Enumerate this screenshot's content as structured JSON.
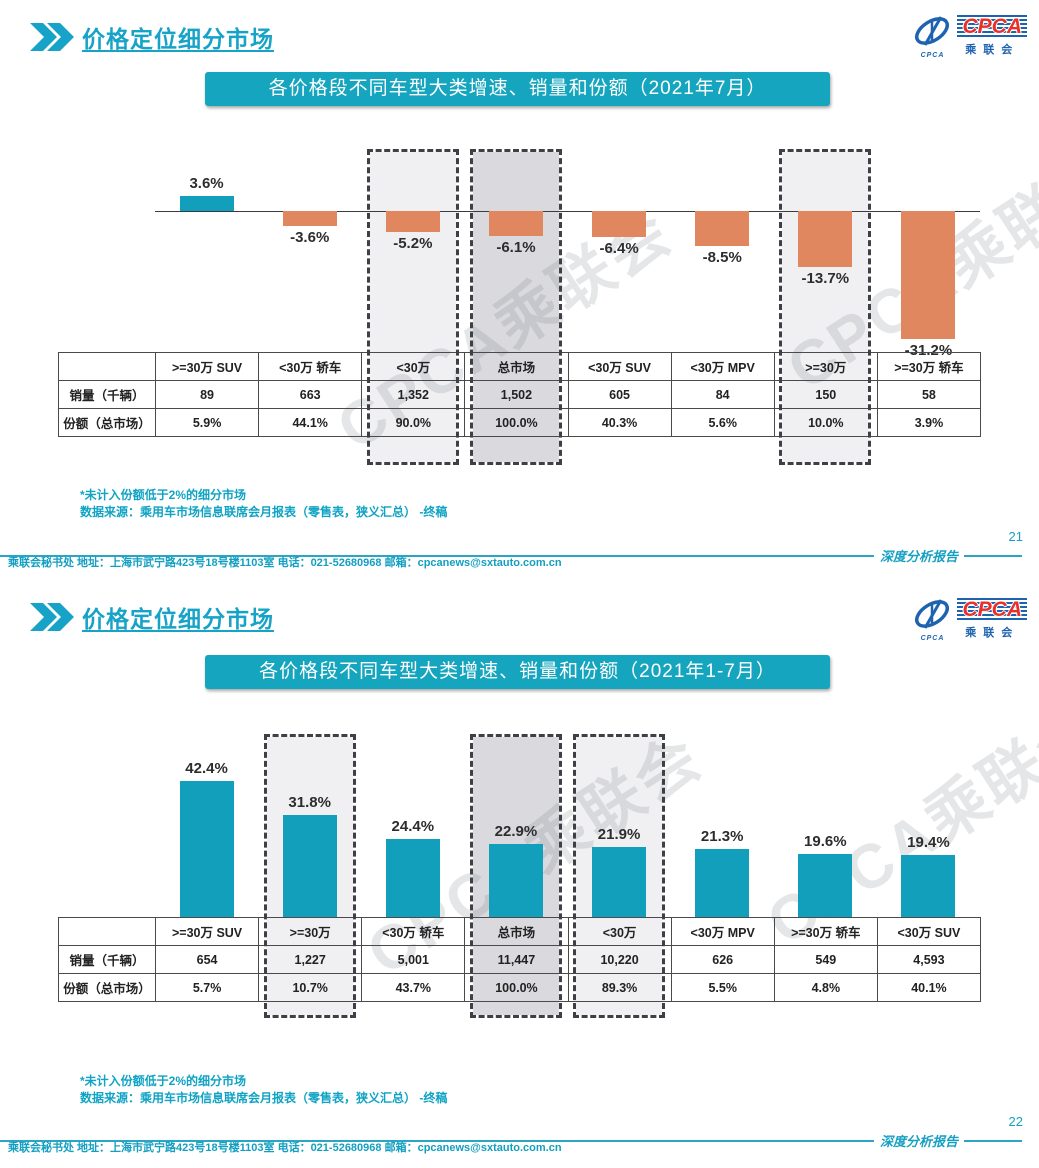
{
  "theme": {
    "accent_teal": "#15A5BE",
    "bar_positive": "#129FBC",
    "bar_negative": "#E0875F",
    "highlight_light": "#F0F0F2",
    "highlight_dark": "#D9D9DE"
  },
  "brand": {
    "logo_cpca": "CPCA",
    "logo_cn": "乘联会",
    "logo_sub": "CPCA"
  },
  "slides": [
    {
      "title": "价格定位细分市场",
      "banner": "各价格段不同车型大类增速、销量和份额（2021年7月）",
      "watermark": "CPCA乘联会",
      "chart_data": {
        "type": "bar",
        "title": "各价格段不同车型大类增速、销量和份额（2021年7月）",
        "categories": [
          ">=30万 SUV",
          "<30万 轿车",
          "<30万",
          "总市场",
          "<30万 SUV",
          "<30万 MPV",
          ">=30万",
          ">=30万 轿车"
        ],
        "values": [
          3.6,
          -3.6,
          -5.2,
          -6.1,
          -6.4,
          -8.5,
          -13.7,
          -31.2
        ],
        "value_labels": [
          "3.6%",
          "-3.6%",
          "-5.2%",
          "-6.1%",
          "-6.4%",
          "-8.5%",
          "-13.7%",
          "-31.2%"
        ],
        "xlabel": "",
        "ylabel": "",
        "grid": false,
        "legend": "none",
        "highlights": [
          {
            "index": 2,
            "tone": "light"
          },
          {
            "index": 3,
            "tone": "dark"
          },
          {
            "index": 6,
            "tone": "light"
          }
        ]
      },
      "table": {
        "row_labels": [
          "销量（千辆）",
          "份额（总市场）"
        ],
        "columns": [
          ">=30万 SUV",
          "<30万 轿车",
          "<30万",
          "总市场",
          "<30万 SUV",
          "<30万 MPV",
          ">=30万",
          ">=30万 轿车"
        ],
        "rows": [
          [
            "89",
            "663",
            "1,352",
            "1,502",
            "605",
            "84",
            "150",
            "58"
          ],
          [
            "5.9%",
            "44.1%",
            "90.0%",
            "100.0%",
            "40.3%",
            "5.6%",
            "10.0%",
            "3.9%"
          ]
        ]
      },
      "notes": [
        "*未计入份额低于2%的细分市场",
        "数据来源：乘用车市场信息联席会月报表（零售表，狭义汇总）  -终稿"
      ],
      "footer_contact": "乘联会秘书处   地址：上海市武宁路423号18号楼1103室   电话：021-52680968   邮箱：cpcanews@sxtauto.com.cn",
      "report_label": "深度分析报告",
      "page_number": "21"
    },
    {
      "title": "价格定位细分市场",
      "banner": "各价格段不同车型大类增速、销量和份额（2021年1-7月）",
      "watermark": "CPCA乘联会",
      "chart_data": {
        "type": "bar",
        "title": "各价格段不同车型大类增速、销量和份额（2021年1-7月）",
        "categories": [
          ">=30万 SUV",
          ">=30万",
          "<30万 轿车",
          "总市场",
          "<30万",
          "<30万 MPV",
          ">=30万 轿车",
          "<30万 SUV"
        ],
        "values": [
          42.4,
          31.8,
          24.4,
          22.9,
          21.9,
          21.3,
          19.6,
          19.4
        ],
        "value_labels": [
          "42.4%",
          "31.8%",
          "24.4%",
          "22.9%",
          "21.9%",
          "21.3%",
          "19.6%",
          "19.4%"
        ],
        "xlabel": "",
        "ylabel": "",
        "grid": false,
        "legend": "none",
        "highlights": [
          {
            "index": 1,
            "tone": "light"
          },
          {
            "index": 3,
            "tone": "dark"
          },
          {
            "index": 4,
            "tone": "light"
          }
        ]
      },
      "table": {
        "row_labels": [
          "销量（千辆）",
          "份额（总市场）"
        ],
        "columns": [
          ">=30万 SUV",
          ">=30万",
          "<30万 轿车",
          "总市场",
          "<30万",
          "<30万 MPV",
          ">=30万 轿车",
          "<30万 SUV"
        ],
        "rows": [
          [
            "654",
            "1,227",
            "5,001",
            "11,447",
            "10,220",
            "626",
            "549",
            "4,593"
          ],
          [
            "5.7%",
            "10.7%",
            "43.7%",
            "100.0%",
            "89.3%",
            "5.5%",
            "4.8%",
            "40.1%"
          ]
        ]
      },
      "notes": [
        "*未计入份额低于2%的细分市场",
        "数据来源：乘用车市场信息联席会月报表（零售表，狭义汇总）  -终稿"
      ],
      "footer_contact": "乘联会秘书处   地址：上海市武宁路423号18号楼1103室   电话：021-52680968   邮箱：cpcanews@sxtauto.com.cn",
      "report_label": "深度分析报告",
      "page_number": "22"
    }
  ]
}
